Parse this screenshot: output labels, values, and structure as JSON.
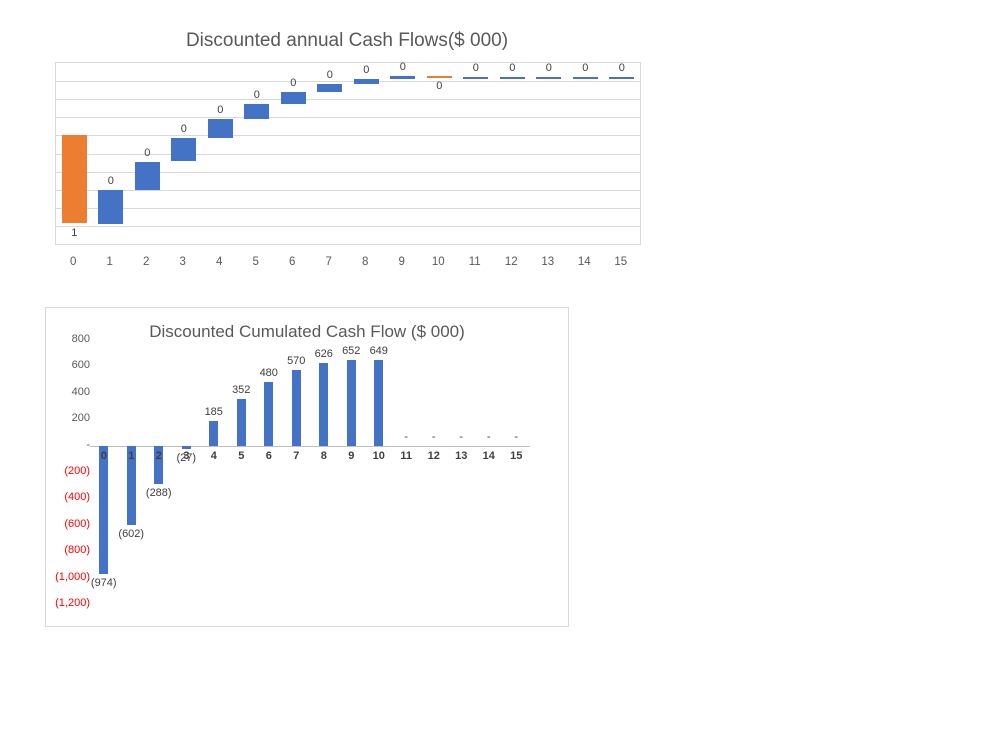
{
  "chart_data": [
    {
      "type": "bar",
      "subtype": "waterfall",
      "title": "Discounted annual Cash Flows($ 000)",
      "categories": [
        "0",
        "1",
        "2",
        "3",
        "4",
        "5",
        "6",
        "7",
        "8",
        "9",
        "10",
        "11",
        "12",
        "13",
        "14",
        "15"
      ],
      "values": [
        -974,
        372,
        314,
        261,
        212,
        167,
        128,
        90,
        56,
        26,
        -3,
        0,
        0,
        0,
        0,
        0
      ],
      "cumulative": [
        -974,
        -602,
        -288,
        -27,
        185,
        352,
        480,
        570,
        626,
        652,
        649,
        649,
        649,
        649,
        649,
        649
      ],
      "data_labels": [
        "1",
        "0",
        "0",
        "0",
        "0",
        "0",
        "0",
        "0",
        "0",
        "0",
        "0",
        "0",
        "0",
        "0",
        "0",
        "0"
      ],
      "ylim": [
        -1200,
        800
      ],
      "grid_step": 200,
      "grid": true,
      "legend": "none",
      "colors": {
        "positive": "#4472C4",
        "negative": "#ED7D31"
      }
    },
    {
      "type": "bar",
      "title": "Discounted Cumulated Cash Flow ($ 000)",
      "categories": [
        "0",
        "1",
        "2",
        "3",
        "4",
        "5",
        "6",
        "7",
        "8",
        "9",
        "10",
        "11",
        "12",
        "13",
        "14",
        "15"
      ],
      "values": [
        -974,
        -602,
        -288,
        -27,
        185,
        352,
        480,
        570,
        626,
        652,
        649,
        0,
        0,
        0,
        0,
        0
      ],
      "data_labels": [
        "(974)",
        "(602)",
        "(288)",
        "(27)",
        "185",
        "352",
        "480",
        "570",
        "626",
        "652",
        "649",
        "-",
        "-",
        "-",
        "-",
        "-"
      ],
      "ylim": [
        -1200,
        800
      ],
      "ytick_step": 200,
      "ytick_labels": [
        "800",
        "600",
        "400",
        "200",
        "-",
        "(200)",
        "(400)",
        "(600)",
        "(800)",
        "(1,000)",
        "(1,200)"
      ],
      "grid": false,
      "legend": "none",
      "colors": {
        "bar": "#4472C4",
        "tick_positive": "#595959",
        "tick_negative": "#FF0000",
        "label": "#404040"
      }
    }
  ]
}
